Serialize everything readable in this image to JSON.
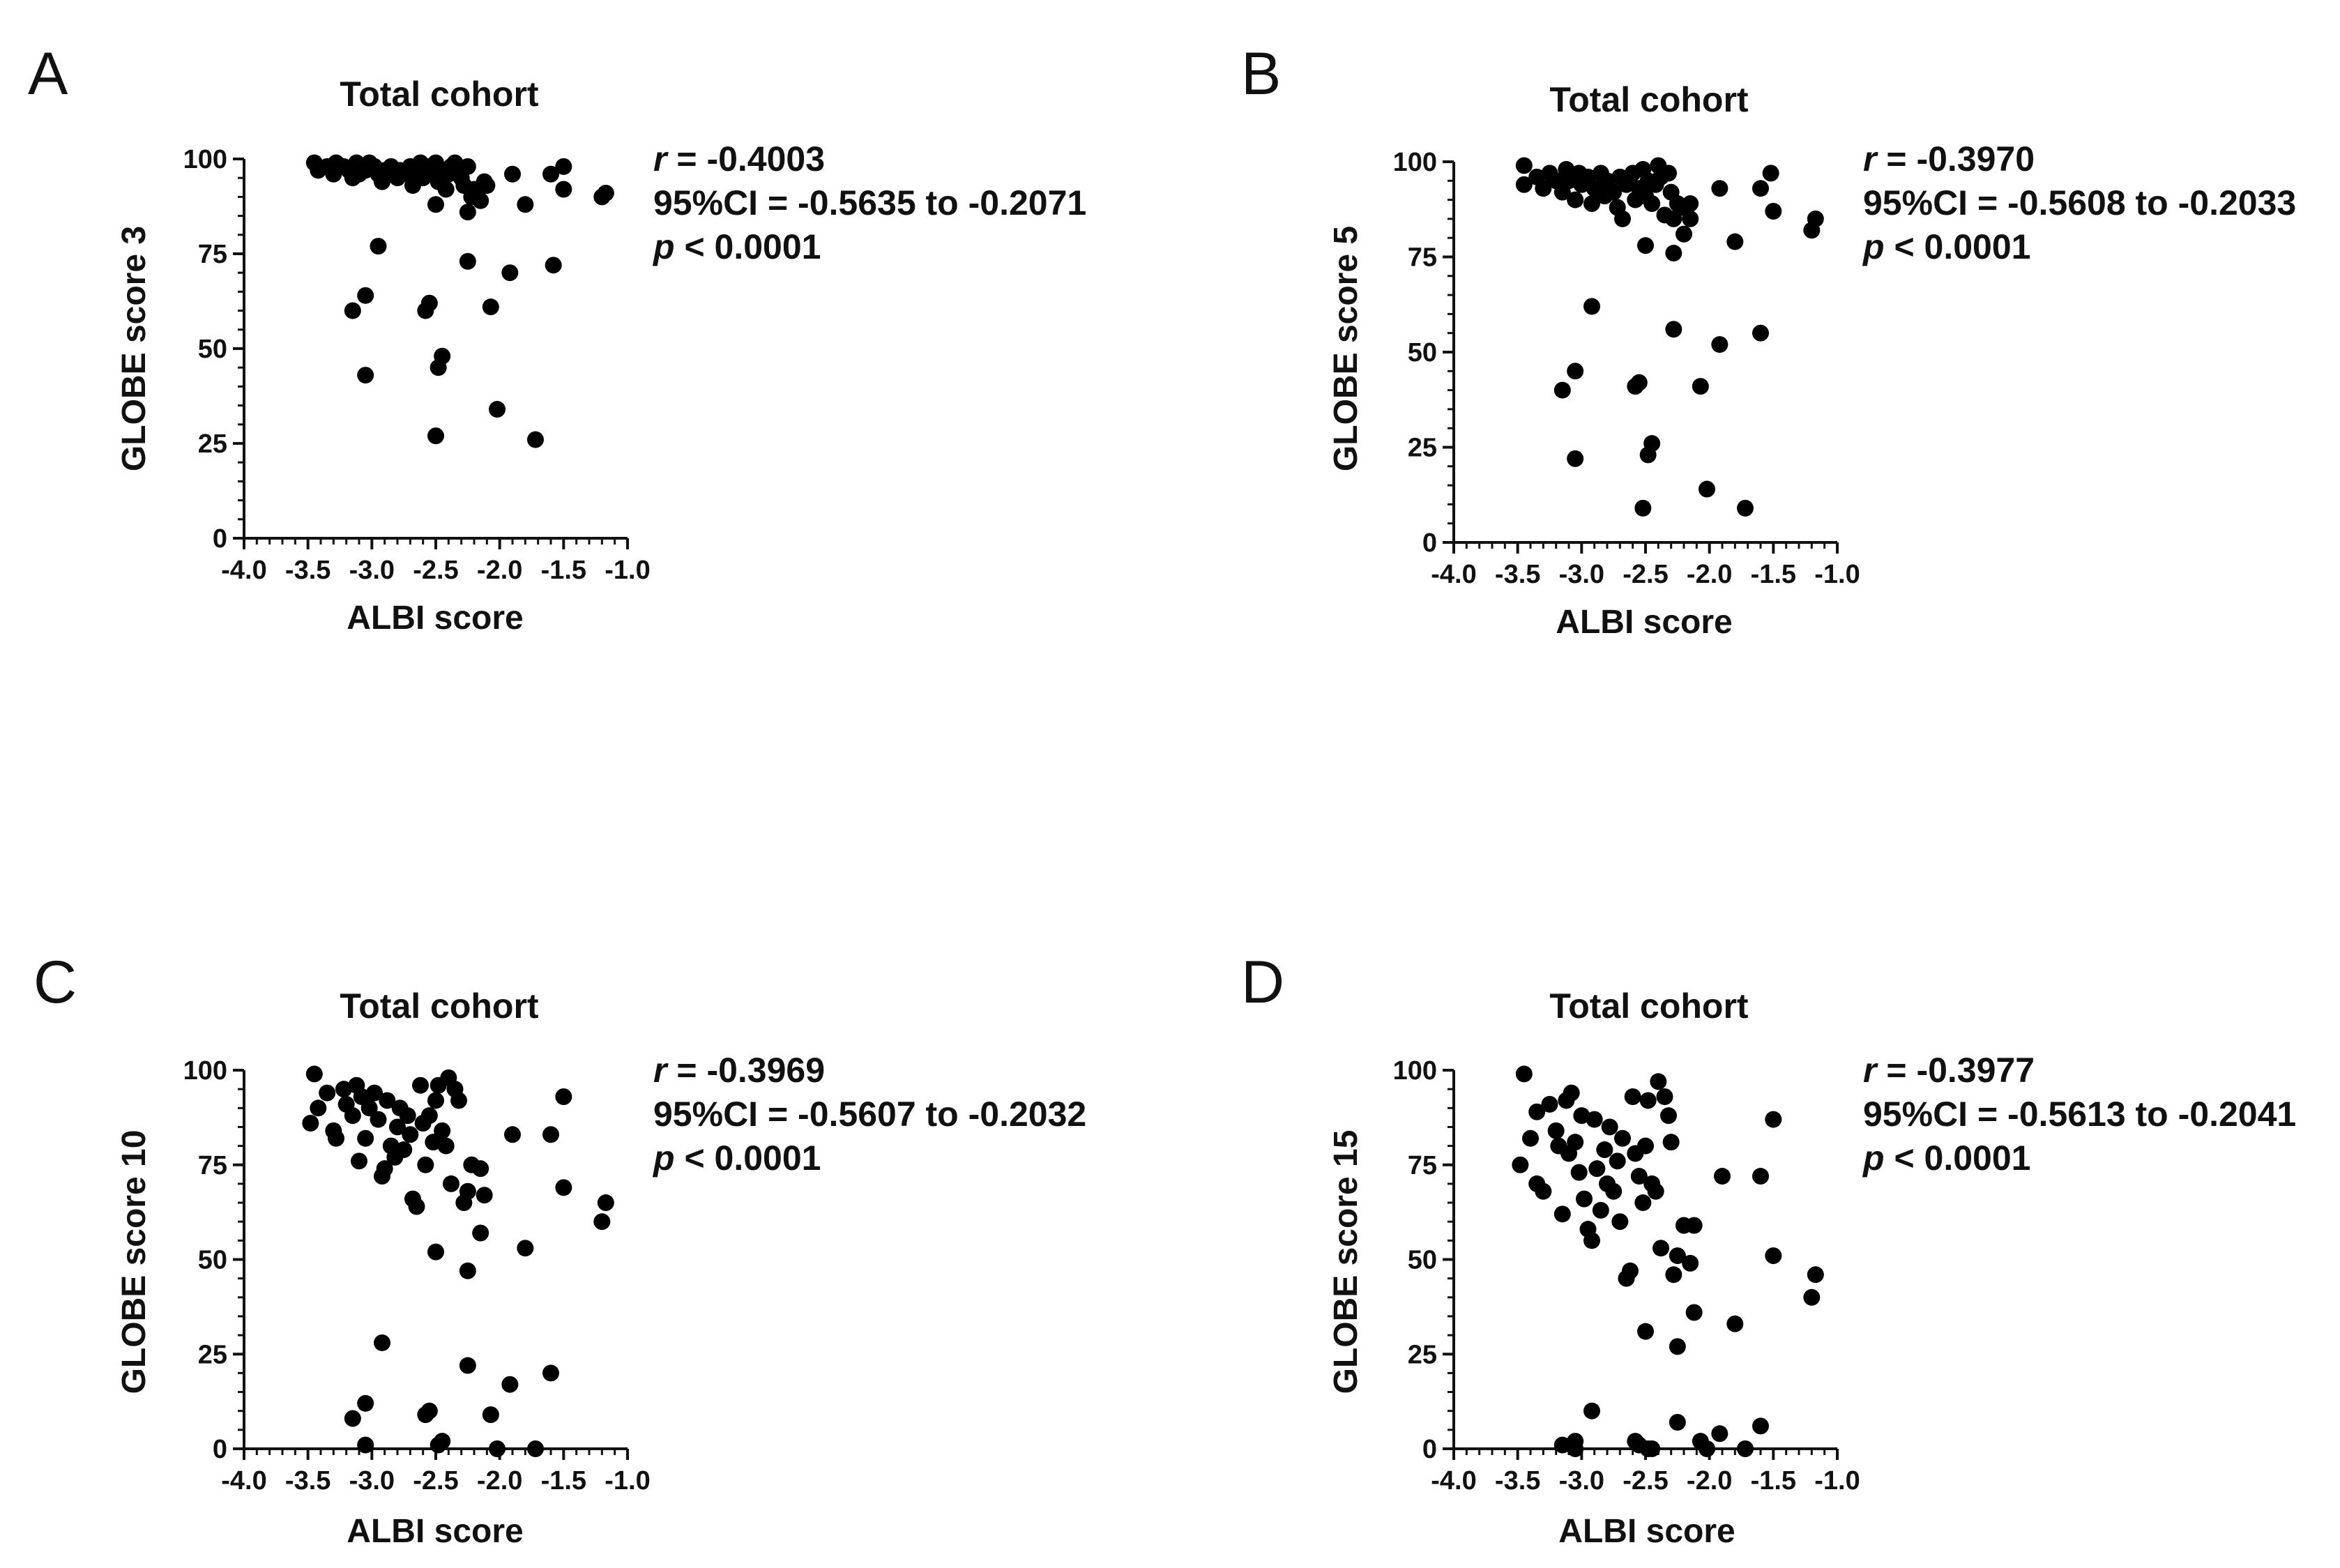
{
  "chart_data": [
    {
      "panel": "A",
      "type": "scatter",
      "title": "Total cohort",
      "xlabel": "ALBI score",
      "ylabel": "GLOBE score 3",
      "xlim": [
        -4.0,
        -1.0
      ],
      "ylim": [
        0,
        100
      ],
      "xticks": [
        "-4.0",
        "-3.5",
        "-3.0",
        "-2.5",
        "-2.0",
        "-1.5",
        "-1.0"
      ],
      "yticks": [
        "0",
        "25",
        "50",
        "75",
        "100"
      ],
      "stats": {
        "r_label": "r",
        "r_value": " = -0.4003",
        "ci": "95%CI = -0.5635 to -0.2071",
        "p_label": "p",
        "p_value": " < 0.0001"
      },
      "points": [
        [
          -3.45,
          99
        ],
        [
          -3.42,
          97
        ],
        [
          -3.35,
          98
        ],
        [
          -3.3,
          96
        ],
        [
          -3.28,
          99
        ],
        [
          -3.22,
          98
        ],
        [
          -3.18,
          97
        ],
        [
          -3.15,
          95
        ],
        [
          -3.12,
          99
        ],
        [
          -3.1,
          96
        ],
        [
          -3.08,
          98
        ],
        [
          -3.05,
          97
        ],
        [
          -3.02,
          99
        ],
        [
          -2.98,
          98
        ],
        [
          -2.95,
          96
        ],
        [
          -2.92,
          94
        ],
        [
          -2.9,
          97
        ],
        [
          -2.85,
          98
        ],
        [
          -2.8,
          95
        ],
        [
          -2.78,
          97
        ],
        [
          -2.72,
          96
        ],
        [
          -2.7,
          98
        ],
        [
          -2.68,
          93
        ],
        [
          -2.65,
          97
        ],
        [
          -2.62,
          99
        ],
        [
          -2.6,
          95
        ],
        [
          -2.55,
          98
        ],
        [
          -2.52,
          96
        ],
        [
          -2.5,
          99
        ],
        [
          -2.48,
          94
        ],
        [
          -2.45,
          97
        ],
        [
          -2.42,
          92
        ],
        [
          -2.4,
          96
        ],
        [
          -2.38,
          98
        ],
        [
          -2.35,
          99
        ],
        [
          -2.32,
          97
        ],
        [
          -2.3,
          95
        ],
        [
          -2.28,
          93
        ],
        [
          -2.25,
          98
        ],
        [
          -2.22,
          90
        ],
        [
          -2.2,
          92
        ],
        [
          -2.15,
          89
        ],
        [
          -2.12,
          94
        ],
        [
          -2.1,
          93
        ],
        [
          -2.5,
          88
        ],
        [
          -2.25,
          86
        ],
        [
          -1.9,
          96
        ],
        [
          -1.8,
          88
        ],
        [
          -1.6,
          96
        ],
        [
          -1.5,
          98
        ],
        [
          -1.5,
          92
        ],
        [
          -1.2,
          90
        ],
        [
          -1.17,
          91
        ],
        [
          -2.95,
          77
        ],
        [
          -2.25,
          73
        ],
        [
          -1.92,
          70
        ],
        [
          -1.58,
          72
        ],
        [
          -3.05,
          64
        ],
        [
          -3.15,
          60
        ],
        [
          -2.58,
          60
        ],
        [
          -2.55,
          62
        ],
        [
          -2.07,
          61
        ],
        [
          -2.45,
          48
        ],
        [
          -2.48,
          45
        ],
        [
          -3.05,
          43
        ],
        [
          -2.02,
          34
        ],
        [
          -2.5,
          27
        ],
        [
          -1.72,
          26
        ]
      ]
    },
    {
      "panel": "B",
      "type": "scatter",
      "title": "Total cohort",
      "xlabel": "ALBI score",
      "ylabel": "GLOBE score 5",
      "xlim": [
        -4.0,
        -1.0
      ],
      "ylim": [
        0,
        100
      ],
      "xticks": [
        "-4.0",
        "-3.5",
        "-3.0",
        "-2.5",
        "-2.0",
        "-1.5",
        "-1.0"
      ],
      "yticks": [
        "0",
        "25",
        "50",
        "75",
        "100"
      ],
      "stats": {
        "r_label": "r",
        "r_value": " = -0.3970",
        "ci": "95%CI = -0.5608 to -0.2033",
        "p_label": "p",
        "p_value": " < 0.0001"
      },
      "points": [
        [
          -3.45,
          99
        ],
        [
          -3.45,
          94
        ],
        [
          -3.35,
          96
        ],
        [
          -3.3,
          93
        ],
        [
          -3.25,
          97
        ],
        [
          -3.2,
          95
        ],
        [
          -3.15,
          92
        ],
        [
          -3.12,
          98
        ],
        [
          -3.1,
          95
        ],
        [
          -3.05,
          90
        ],
        [
          -3.02,
          97
        ],
        [
          -3.0,
          94
        ],
        [
          -2.95,
          96
        ],
        [
          -2.92,
          89
        ],
        [
          -2.9,
          93
        ],
        [
          -2.85,
          97
        ],
        [
          -2.82,
          91
        ],
        [
          -2.8,
          95
        ],
        [
          -2.75,
          92
        ],
        [
          -2.72,
          88
        ],
        [
          -2.7,
          96
        ],
        [
          -2.68,
          85
        ],
        [
          -2.65,
          94
        ],
        [
          -2.6,
          97
        ],
        [
          -2.58,
          90
        ],
        [
          -2.55,
          93
        ],
        [
          -2.52,
          98
        ],
        [
          -2.5,
          91
        ],
        [
          -2.48,
          95
        ],
        [
          -2.45,
          89
        ],
        [
          -2.42,
          94
        ],
        [
          -2.4,
          99
        ],
        [
          -2.38,
          96
        ],
        [
          -2.35,
          86
        ],
        [
          -2.32,
          97
        ],
        [
          -2.3,
          92
        ],
        [
          -2.28,
          85
        ],
        [
          -2.25,
          89
        ],
        [
          -2.22,
          88
        ],
        [
          -2.2,
          81
        ],
        [
          -2.15,
          89
        ],
        [
          -2.15,
          85
        ],
        [
          -2.5,
          78
        ],
        [
          -2.28,
          76
        ],
        [
          -1.92,
          93
        ],
        [
          -1.8,
          79
        ],
        [
          -1.6,
          93
        ],
        [
          -1.52,
          97
        ],
        [
          -1.5,
          87
        ],
        [
          -1.2,
          82
        ],
        [
          -1.17,
          85
        ],
        [
          -2.92,
          62
        ],
        [
          -2.28,
          56
        ],
        [
          -1.92,
          52
        ],
        [
          -1.6,
          55
        ],
        [
          -3.05,
          45
        ],
        [
          -3.15,
          40
        ],
        [
          -2.58,
          41
        ],
        [
          -2.55,
          42
        ],
        [
          -2.07,
          41
        ],
        [
          -2.45,
          26
        ],
        [
          -2.48,
          23
        ],
        [
          -3.05,
          22
        ],
        [
          -2.02,
          14
        ],
        [
          -2.52,
          9
        ],
        [
          -1.72,
          9
        ]
      ]
    },
    {
      "panel": "C",
      "type": "scatter",
      "title": "Total cohort",
      "xlabel": "ALBI score",
      "ylabel": "GLOBE score 10",
      "xlim": [
        -4.0,
        -1.0
      ],
      "ylim": [
        0,
        100
      ],
      "xticks": [
        "-4.0",
        "-3.5",
        "-3.0",
        "-2.5",
        "-2.0",
        "-1.5",
        "-1.0"
      ],
      "yticks": [
        "0",
        "25",
        "50",
        "75",
        "100"
      ],
      "stats": {
        "r_label": "r",
        "r_value": " = -0.3969",
        "ci": "95%CI = -0.5607 to -0.2032",
        "p_label": "p",
        "p_value": " < 0.0001"
      },
      "points": [
        [
          -3.45,
          99
        ],
        [
          -3.48,
          86
        ],
        [
          -3.42,
          90
        ],
        [
          -3.35,
          94
        ],
        [
          -3.3,
          84
        ],
        [
          -3.28,
          82
        ],
        [
          -3.22,
          95
        ],
        [
          -3.2,
          91
        ],
        [
          -3.15,
          88
        ],
        [
          -3.12,
          96
        ],
        [
          -3.1,
          76
        ],
        [
          -3.08,
          93
        ],
        [
          -3.05,
          82
        ],
        [
          -3.02,
          90
        ],
        [
          -2.98,
          94
        ],
        [
          -2.95,
          87
        ],
        [
          -2.92,
          72
        ],
        [
          -2.9,
          74
        ],
        [
          -2.88,
          92
        ],
        [
          -2.85,
          80
        ],
        [
          -2.82,
          77
        ],
        [
          -2.8,
          85
        ],
        [
          -2.78,
          90
        ],
        [
          -2.75,
          79
        ],
        [
          -2.72,
          88
        ],
        [
          -2.7,
          83
        ],
        [
          -2.68,
          66
        ],
        [
          -2.65,
          64
        ],
        [
          -2.62,
          96
        ],
        [
          -2.6,
          86
        ],
        [
          -2.58,
          75
        ],
        [
          -2.55,
          88
        ],
        [
          -2.52,
          81
        ],
        [
          -2.5,
          92
        ],
        [
          -2.48,
          96
        ],
        [
          -2.45,
          84
        ],
        [
          -2.42,
          80
        ],
        [
          -2.4,
          98
        ],
        [
          -2.38,
          70
        ],
        [
          -2.35,
          95
        ],
        [
          -2.32,
          92
        ],
        [
          -2.28,
          65
        ],
        [
          -2.25,
          68
        ],
        [
          -2.22,
          75
        ],
        [
          -2.15,
          74
        ],
        [
          -2.12,
          67
        ],
        [
          -2.5,
          52
        ],
        [
          -2.25,
          47
        ],
        [
          -1.9,
          83
        ],
        [
          -1.8,
          53
        ],
        [
          -1.6,
          83
        ],
        [
          -1.5,
          69
        ],
        [
          -1.5,
          93
        ],
        [
          -1.2,
          60
        ],
        [
          -1.17,
          65
        ],
        [
          -2.15,
          57
        ],
        [
          -2.92,
          28
        ],
        [
          -2.25,
          22
        ],
        [
          -1.92,
          17
        ],
        [
          -1.6,
          20
        ],
        [
          -3.05,
          12
        ],
        [
          -3.15,
          8
        ],
        [
          -2.58,
          9
        ],
        [
          -2.55,
          10
        ],
        [
          -2.07,
          9
        ],
        [
          -2.45,
          2
        ],
        [
          -2.48,
          1
        ],
        [
          -3.05,
          1
        ],
        [
          -2.02,
          0
        ],
        [
          -1.72,
          0
        ]
      ]
    },
    {
      "panel": "D",
      "type": "scatter",
      "title": "Total cohort",
      "xlabel": "ALBI score",
      "ylabel": "GLOBE score 15",
      "xlim": [
        -4.0,
        -1.0
      ],
      "ylim": [
        0,
        100
      ],
      "xticks": [
        "-4.0",
        "-3.5",
        "-3.0",
        "-2.5",
        "-2.0",
        "-1.5",
        "-1.0"
      ],
      "yticks": [
        "0",
        "25",
        "50",
        "75",
        "100"
      ],
      "stats": {
        "r_label": "r",
        "r_value": " = -0.3977",
        "ci": "95%CI = -0.5613 to -0.2041",
        "p_label": "p",
        "p_value": " < 0.0001"
      },
      "points": [
        [
          -3.45,
          99
        ],
        [
          -3.48,
          75
        ],
        [
          -3.4,
          82
        ],
        [
          -3.35,
          89
        ],
        [
          -3.35,
          70
        ],
        [
          -3.3,
          68
        ],
        [
          -3.25,
          91
        ],
        [
          -3.2,
          84
        ],
        [
          -3.18,
          80
        ],
        [
          -3.15,
          62
        ],
        [
          -3.12,
          92
        ],
        [
          -3.1,
          78
        ],
        [
          -3.08,
          94
        ],
        [
          -3.05,
          81
        ],
        [
          -3.02,
          73
        ],
        [
          -3.0,
          88
        ],
        [
          -2.98,
          66
        ],
        [
          -2.95,
          58
        ],
        [
          -2.92,
          55
        ],
        [
          -2.9,
          87
        ],
        [
          -2.88,
          74
        ],
        [
          -2.85,
          63
        ],
        [
          -2.82,
          79
        ],
        [
          -2.8,
          70
        ],
        [
          -2.78,
          85
        ],
        [
          -2.75,
          68
        ],
        [
          -2.72,
          76
        ],
        [
          -2.7,
          60
        ],
        [
          -2.68,
          82
        ],
        [
          -2.65,
          45
        ],
        [
          -2.62,
          47
        ],
        [
          -2.6,
          93
        ],
        [
          -2.58,
          78
        ],
        [
          -2.55,
          72
        ],
        [
          -2.52,
          65
        ],
        [
          -2.5,
          80
        ],
        [
          -2.48,
          92
        ],
        [
          -2.45,
          70
        ],
        [
          -2.42,
          68
        ],
        [
          -2.4,
          97
        ],
        [
          -2.38,
          53
        ],
        [
          -2.35,
          93
        ],
        [
          -2.32,
          88
        ],
        [
          -2.3,
          81
        ],
        [
          -2.28,
          46
        ],
        [
          -2.25,
          51
        ],
        [
          -2.2,
          59
        ],
        [
          -2.15,
          49
        ],
        [
          -2.12,
          59
        ],
        [
          -2.5,
          31
        ],
        [
          -2.25,
          27
        ],
        [
          -1.9,
          72
        ],
        [
          -1.8,
          33
        ],
        [
          -1.6,
          72
        ],
        [
          -1.5,
          87
        ],
        [
          -1.5,
          51
        ],
        [
          -1.2,
          40
        ],
        [
          -1.17,
          46
        ],
        [
          -2.12,
          36
        ],
        [
          -2.92,
          10
        ],
        [
          -2.25,
          7
        ],
        [
          -1.92,
          4
        ],
        [
          -1.6,
          6
        ],
        [
          -3.05,
          2
        ],
        [
          -3.15,
          1
        ],
        [
          -2.58,
          2
        ],
        [
          -2.55,
          1
        ],
        [
          -2.07,
          2
        ],
        [
          -2.45,
          0
        ],
        [
          -2.48,
          0
        ],
        [
          -3.05,
          0
        ],
        [
          -2.02,
          0
        ],
        [
          -1.72,
          0
        ]
      ]
    }
  ]
}
